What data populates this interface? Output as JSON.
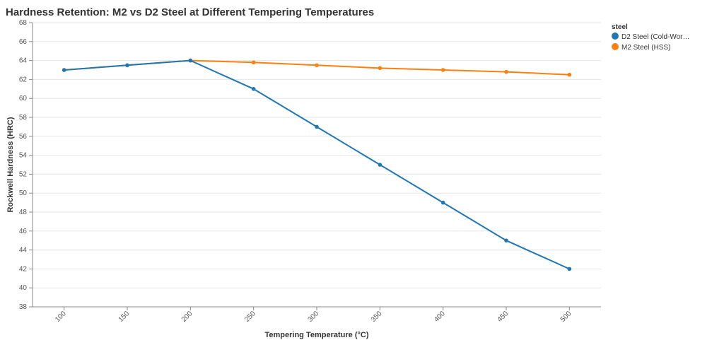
{
  "chart_data": {
    "type": "line",
    "title": "Hardness Retention: M2 vs D2 Steel at Different Tempering Temperatures",
    "xlabel": "Tempering Temperature (°C)",
    "ylabel": "Rockwell Hardness (HRC)",
    "categories": [
      "100",
      "150",
      "200",
      "250",
      "300",
      "350",
      "400",
      "450",
      "500"
    ],
    "ylim": [
      38,
      68
    ],
    "yticks": [
      38,
      40,
      42,
      44,
      46,
      48,
      50,
      52,
      54,
      56,
      58,
      60,
      62,
      64,
      66,
      68
    ],
    "grid": true,
    "legend": {
      "title": "steel",
      "placement": "right"
    },
    "series": [
      {
        "name": "D2 Steel (Cold-Wor…",
        "color": "#1f77b4",
        "values": [
          63,
          63.5,
          64,
          61,
          57,
          53,
          49,
          45,
          42
        ]
      },
      {
        "name": "M2 Steel (HSS)",
        "color": "#ff7f0e",
        "values": [
          63,
          63.5,
          64,
          63.8,
          63.5,
          63.2,
          63,
          62.8,
          62.5
        ]
      }
    ]
  }
}
